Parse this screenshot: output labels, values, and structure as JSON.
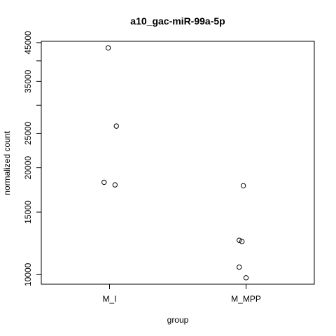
{
  "chart_data": {
    "type": "scatter",
    "title": "a10_gac-miR-99a-5p",
    "xlabel": "group",
    "ylabel": "normalized count",
    "y_scale": "log",
    "categories": [
      "M_I",
      "M_MPP"
    ],
    "y_ticks": [
      {
        "value": 10000,
        "label": "10000"
      },
      {
        "value": 15000,
        "label": "15000"
      },
      {
        "value": 20000,
        "label": "20000"
      },
      {
        "value": 25000,
        "label": "25000"
      },
      {
        "value": 30000,
        "label": ""
      },
      {
        "value": 35000,
        "label": "35000"
      },
      {
        "value": 40000,
        "label": ""
      },
      {
        "value": 45000,
        "label": "45000"
      }
    ],
    "ylim": [
      9400,
      45400
    ],
    "points": [
      {
        "category": "M_I",
        "jitter": -0.01,
        "y": 43500
      },
      {
        "category": "M_I",
        "jitter": 0.05,
        "y": 26200
      },
      {
        "category": "M_I",
        "jitter": -0.04,
        "y": 18200
      },
      {
        "category": "M_I",
        "jitter": 0.04,
        "y": 17900
      },
      {
        "category": "M_MPP",
        "jitter": -0.02,
        "y": 17800
      },
      {
        "category": "M_MPP",
        "jitter": -0.05,
        "y": 12500
      },
      {
        "category": "M_MPP",
        "jitter": -0.03,
        "y": 12400
      },
      {
        "category": "M_MPP",
        "jitter": -0.05,
        "y": 10500
      },
      {
        "category": "M_MPP",
        "jitter": 0.0,
        "y": 9800
      }
    ]
  }
}
